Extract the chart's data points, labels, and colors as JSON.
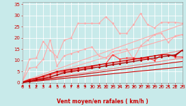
{
  "background_color": "#c8eaea",
  "grid_color": "#b0d0d0",
  "xlabel": "Vent moyen/en rafales ( km/h )",
  "xlim": [
    0,
    23
  ],
  "ylim": [
    0,
    36
  ],
  "yticks": [
    0,
    5,
    10,
    15,
    20,
    25,
    30,
    35
  ],
  "xticks": [
    0,
    1,
    2,
    3,
    4,
    5,
    6,
    7,
    8,
    9,
    10,
    11,
    12,
    13,
    14,
    15,
    16,
    17,
    18,
    19,
    20,
    21,
    22,
    23
  ],
  "lines": [
    {
      "x": [
        0,
        23
      ],
      "y": [
        0.5,
        26.0
      ],
      "color": "#ffaaaa",
      "lw": 0.8,
      "marker": null,
      "ls": "-"
    },
    {
      "x": [
        0,
        23
      ],
      "y": [
        0.3,
        21.5
      ],
      "color": "#ffaaaa",
      "lw": 0.8,
      "marker": null,
      "ls": "-"
    },
    {
      "x": [
        0,
        23
      ],
      "y": [
        0.3,
        14.5
      ],
      "color": "#ee8888",
      "lw": 0.8,
      "marker": null,
      "ls": "-"
    },
    {
      "x": [
        0,
        23
      ],
      "y": [
        0.2,
        11.0
      ],
      "color": "#ee8888",
      "lw": 0.8,
      "marker": null,
      "ls": "-"
    },
    {
      "x": [
        0,
        23
      ],
      "y": [
        0.2,
        9.5
      ],
      "color": "#cc0000",
      "lw": 0.8,
      "marker": null,
      "ls": "-"
    },
    {
      "x": [
        0,
        23
      ],
      "y": [
        0.1,
        7.0
      ],
      "color": "#cc0000",
      "lw": 0.8,
      "marker": null,
      "ls": "-"
    },
    {
      "x": [
        0,
        1,
        2,
        3,
        4,
        5,
        6,
        7,
        8,
        9,
        10,
        11,
        12,
        13,
        14,
        15,
        16,
        17,
        18,
        19,
        20,
        21,
        22,
        23
      ],
      "y": [
        0.5,
        10.5,
        11.0,
        18.5,
        14.5,
        11.5,
        19.0,
        20.0,
        26.5,
        26.5,
        26.5,
        26.5,
        29.5,
        26.5,
        22.0,
        22.0,
        26.0,
        31.0,
        26.0,
        24.5,
        27.0,
        27.0,
        27.0,
        26.5
      ],
      "color": "#ffaaaa",
      "lw": 0.8,
      "marker": "D",
      "ms": 1.5,
      "ls": "-"
    },
    {
      "x": [
        0,
        1,
        2,
        3,
        4,
        5,
        6,
        7,
        8,
        9,
        10,
        11,
        12,
        13,
        14,
        15,
        16,
        17,
        18,
        19,
        20,
        21,
        22,
        23
      ],
      "y": [
        0.5,
        6.5,
        7.0,
        10.5,
        19.0,
        7.5,
        12.0,
        13.0,
        14.0,
        15.0,
        16.0,
        12.0,
        11.0,
        14.0,
        14.5,
        15.0,
        10.5,
        16.5,
        19.0,
        21.5,
        22.0,
        18.0,
        21.0,
        21.5
      ],
      "color": "#ffaaaa",
      "lw": 0.8,
      "marker": "D",
      "ms": 1.5,
      "ls": "-"
    },
    {
      "x": [
        0,
        1,
        2,
        3,
        4,
        5,
        6,
        7,
        8,
        9,
        10,
        11,
        12,
        13,
        14,
        15,
        16,
        17,
        18,
        19,
        20,
        21,
        22,
        23
      ],
      "y": [
        0.3,
        1.5,
        2.0,
        2.5,
        3.5,
        4.5,
        5.0,
        5.5,
        6.0,
        6.5,
        7.0,
        8.0,
        8.5,
        12.5,
        10.5,
        11.0,
        11.0,
        10.5,
        11.0,
        10.0,
        12.5,
        12.5,
        11.5,
        11.5
      ],
      "color": "#ff4444",
      "lw": 0.9,
      "marker": "D",
      "ms": 1.5,
      "ls": "-"
    },
    {
      "x": [
        0,
        1,
        2,
        3,
        4,
        5,
        6,
        7,
        8,
        9,
        10,
        11,
        12,
        13,
        14,
        15,
        16,
        17,
        18,
        19,
        20,
        21,
        22,
        23
      ],
      "y": [
        0.2,
        1.2,
        2.0,
        3.0,
        4.0,
        5.0,
        5.5,
        6.0,
        6.5,
        7.0,
        7.5,
        8.0,
        8.5,
        9.0,
        9.5,
        10.0,
        10.5,
        11.0,
        11.5,
        12.0,
        12.5,
        12.5,
        12.0,
        14.5
      ],
      "color": "#cc0000",
      "lw": 0.9,
      "marker": "D",
      "ms": 1.5,
      "ls": "-"
    },
    {
      "x": [
        0,
        1,
        2,
        3,
        4,
        5,
        6,
        7,
        8,
        9,
        10,
        11,
        12,
        13,
        14,
        15,
        16,
        17,
        18,
        19,
        20,
        21,
        22,
        23
      ],
      "y": [
        0.1,
        0.5,
        1.5,
        1.8,
        2.5,
        3.5,
        4.5,
        5.0,
        5.5,
        6.0,
        6.5,
        7.0,
        7.5,
        8.0,
        8.5,
        9.0,
        9.5,
        10.0,
        10.5,
        11.0,
        11.5,
        12.0,
        12.5,
        14.5
      ],
      "color": "#aa0000",
      "lw": 0.9,
      "marker": "D",
      "ms": 1.5,
      "ls": "-"
    }
  ],
  "wind_arrows_x": [
    0,
    1,
    2,
    3,
    4,
    5,
    6,
    7,
    8,
    9,
    10,
    11,
    12,
    13,
    14,
    15,
    16,
    17,
    18,
    19,
    20,
    21,
    22,
    23
  ],
  "wind_arrow_color": "#cc0000",
  "label_fontsize": 5.5,
  "tick_fontsize": 5
}
